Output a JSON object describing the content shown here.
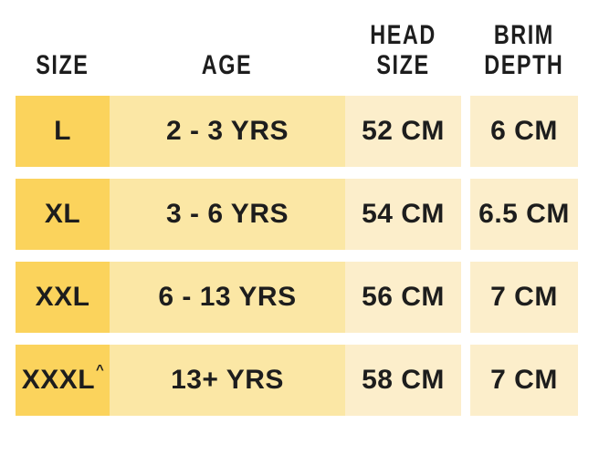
{
  "colors": {
    "page_bg": "#FFFFFF",
    "size_cell_bg": "#FBD35C",
    "age_cell_bg": "#FBE7A5",
    "measure_cell_bg": "#FCEECB",
    "text": "#1D1D1D"
  },
  "chart_data": {
    "type": "table",
    "columns": [
      "SIZE",
      "AGE",
      "HEAD SIZE",
      "BRIM DEPTH"
    ],
    "rows": [
      [
        "L",
        "2 - 3 YRS",
        "52 CM",
        "6 CM"
      ],
      [
        "XL",
        "3 - 6 YRS",
        "54 CM",
        "6.5 CM"
      ],
      [
        "XXL",
        "6 - 13 YRS",
        "56 CM",
        "7 CM"
      ],
      [
        "XXXL^",
        "13+ YRS",
        "58 CM",
        "7 CM"
      ]
    ]
  },
  "table": {
    "headers": {
      "size": "SIZE",
      "age": "AGE",
      "head_size_lines": [
        "HEAD",
        "SIZE"
      ],
      "brim_depth_lines": [
        "BRIM",
        "DEPTH"
      ]
    },
    "rows": [
      {
        "size": "L",
        "size_marker": "",
        "age": "2 - 3 YRS",
        "head": "52 CM",
        "brim": "6 CM"
      },
      {
        "size": "XL",
        "size_marker": "",
        "age": "3 - 6 YRS",
        "head": "54 CM",
        "brim": "6.5 CM"
      },
      {
        "size": "XXL",
        "size_marker": "",
        "age": "6 - 13 YRS",
        "head": "56 CM",
        "brim": "7 CM"
      },
      {
        "size": "XXXL",
        "size_marker": "^",
        "age": "13+ YRS",
        "head": "58 CM",
        "brim": "7 CM"
      }
    ]
  }
}
